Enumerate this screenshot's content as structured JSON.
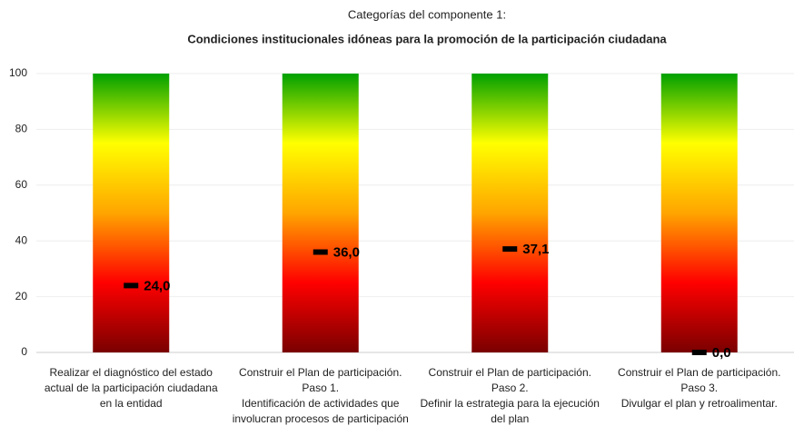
{
  "chart_data": {
    "type": "gauge-bar",
    "title": "Categorías del componente 1:",
    "subtitle": "Condiciones institucionales idóneas para la promoción de la participación ciudadana",
    "categories": [
      [
        "Realizar el diagnóstico del estado",
        "actual de la participación ciudadana",
        "en la entidad"
      ],
      [
        "Construir el Plan de participación.",
        "Paso 1.",
        "Identificación de actividades que",
        "involucran procesos de participación"
      ],
      [
        "Construir el Plan de participación.",
        "Paso 2.",
        "Definir la estrategia para la ejecución",
        "del plan"
      ],
      [
        "Construir el Plan de participación.",
        "Paso 3.",
        "Divulgar el plan y retroalimentar."
      ]
    ],
    "values": [
      24.0,
      36.0,
      37.1,
      0.0
    ],
    "value_labels": [
      "24,0",
      "36,0",
      "37,1",
      "0,0"
    ],
    "gradient_colors": [
      "#7a0000",
      "#ff0000",
      "#ffa500",
      "#ffff00",
      "#00a000"
    ],
    "marker_color": "#000000",
    "ylim": [
      0,
      100
    ],
    "yticks": [
      0,
      20,
      40,
      60,
      80,
      100
    ],
    "grid": true
  }
}
